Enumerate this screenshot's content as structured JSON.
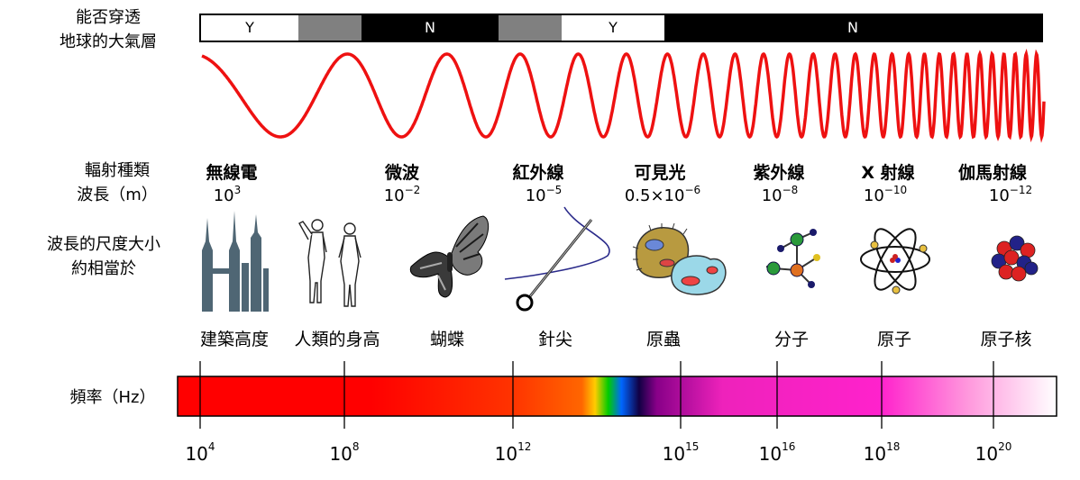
{
  "penetration": {
    "title_line1": "能否穿透",
    "title_line2": "地球的大氣層",
    "segments": [
      {
        "label": "Y",
        "color": "#ffffff",
        "text_color": "#000000"
      },
      {
        "label": "",
        "color": "#808080",
        "text_color": "#ffffff"
      },
      {
        "label": "N",
        "color": "#000000",
        "text_color": "#ffffff"
      },
      {
        "label": "",
        "color": "#808080",
        "text_color": "#ffffff"
      },
      {
        "label": "Y",
        "color": "#ffffff",
        "text_color": "#000000"
      },
      {
        "label": "N",
        "color": "#000000",
        "text_color": "#ffffff"
      }
    ]
  },
  "wave": {
    "color": "#ee1111"
  },
  "labels": {
    "radiation_type": "輻射種類",
    "wavelength": "波長（m）",
    "scale_line1": "波長的尺度大小",
    "scale_line2": "約相當於",
    "frequency": "頻率（Hz）"
  },
  "bands": [
    {
      "name": "無線電",
      "wl_base": "10",
      "wl_exp": "3"
    },
    {
      "name": "微波",
      "wl_base": "10",
      "wl_exp": "−2"
    },
    {
      "name": "紅外線",
      "wl_base": "10",
      "wl_exp": "−5"
    },
    {
      "name": "可見光",
      "wl_base": "0.5×10",
      "wl_exp": "−6"
    },
    {
      "name": "紫外線",
      "wl_base": "10",
      "wl_exp": "−8"
    },
    {
      "name": "X 射線",
      "wl_base": "10",
      "wl_exp": "−10"
    },
    {
      "name": "伽馬射線",
      "wl_base": "10",
      "wl_exp": "−12"
    }
  ],
  "objects": [
    {
      "name": "建築高度",
      "icon": "skyscraper-icon"
    },
    {
      "name": "人類的身高",
      "icon": "humans-icon"
    },
    {
      "name": "蝴蝶",
      "icon": "butterfly-icon"
    },
    {
      "name": "針尖",
      "icon": "needle-icon"
    },
    {
      "name": "原蟲",
      "icon": "protozoa-icon"
    },
    {
      "name": "分子",
      "icon": "molecule-icon"
    },
    {
      "name": "原子",
      "icon": "atom-icon"
    },
    {
      "name": "原子核",
      "icon": "nucleus-icon"
    }
  ],
  "frequency_ticks": [
    {
      "base": "10",
      "exp": "4"
    },
    {
      "base": "10",
      "exp": "8"
    },
    {
      "base": "10",
      "exp": "12"
    },
    {
      "base": "10",
      "exp": "15"
    },
    {
      "base": "10",
      "exp": "16"
    },
    {
      "base": "10",
      "exp": "18"
    },
    {
      "base": "10",
      "exp": "20"
    }
  ]
}
